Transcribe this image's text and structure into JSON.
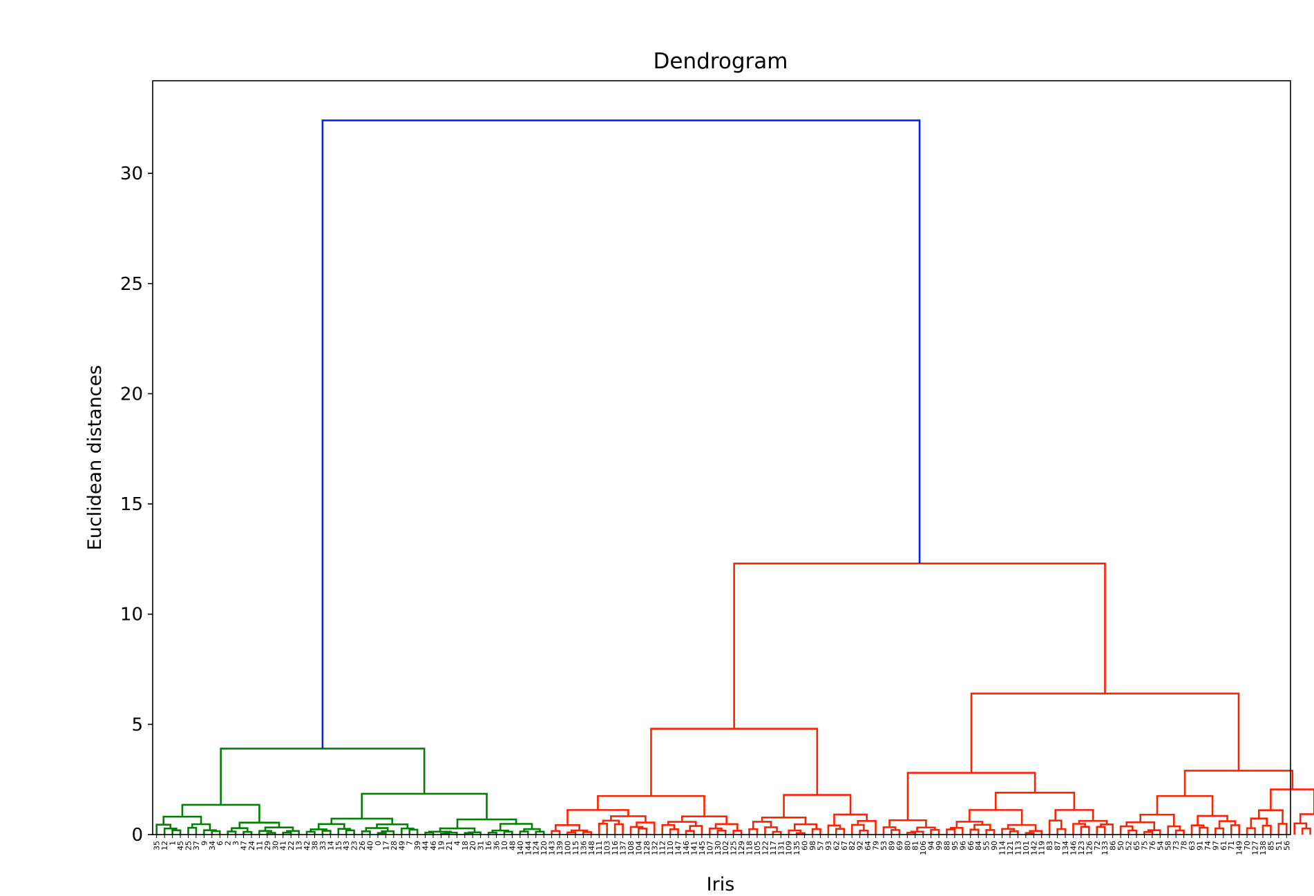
{
  "chart_data": {
    "type": "dendrogram",
    "title": "Dendrogram",
    "xlabel": "Iris",
    "ylabel": "Euclidean distances",
    "ylim": [
      0,
      34.2
    ],
    "yticks": [
      0,
      5,
      10,
      15,
      20,
      25,
      30
    ],
    "leaves": [
      "35",
      "12",
      "1",
      "45",
      "25",
      "37",
      "9",
      "34",
      "6",
      "2",
      "3",
      "47",
      "24",
      "11",
      "29",
      "30",
      "41",
      "22",
      "13",
      "42",
      "38",
      "33",
      "14",
      "15",
      "43",
      "23",
      "26",
      "40",
      "0",
      "17",
      "28",
      "49",
      "7",
      "39",
      "44",
      "46",
      "19",
      "21",
      "4",
      "18",
      "20",
      "31",
      "16",
      "36",
      "10",
      "48",
      "140",
      "144",
      "124",
      "120",
      "143",
      "139",
      "100",
      "115",
      "136",
      "148",
      "111",
      "103",
      "116",
      "137",
      "108",
      "104",
      "128",
      "132",
      "112",
      "110",
      "147",
      "146",
      "141",
      "145",
      "107",
      "130",
      "102",
      "125",
      "129",
      "118",
      "105",
      "122",
      "117",
      "131",
      "109",
      "135",
      "60",
      "98",
      "57",
      "93",
      "62",
      "67",
      "82",
      "92",
      "64",
      "79",
      "53",
      "89",
      "69",
      "80",
      "81",
      "106",
      "94",
      "99",
      "88",
      "95",
      "96",
      "66",
      "84",
      "55",
      "90",
      "114",
      "121",
      "113",
      "101",
      "142",
      "119",
      "83",
      "87",
      "134",
      "146",
      "123",
      "126",
      "72",
      "133",
      "86",
      "50",
      "52",
      "65",
      "75",
      "76",
      "54",
      "58",
      "73",
      "78",
      "63",
      "91",
      "74",
      "97",
      "61",
      "71",
      "149",
      "70",
      "127",
      "138",
      "85",
      "51",
      "56"
    ],
    "colors": {
      "cluster_1": "#008000",
      "cluster_2": "#ff2000",
      "root": "#0020ff"
    },
    "key_merges": [
      {
        "height": 32.4,
        "cluster": "root"
      },
      {
        "height": 12.3,
        "cluster": "cluster_2"
      },
      {
        "height": 6.4,
        "cluster": "cluster_2"
      },
      {
        "height": 4.8,
        "cluster": "cluster_2"
      },
      {
        "height": 3.9,
        "cluster": "cluster_1"
      },
      {
        "height": 2.9,
        "cluster": "cluster_2"
      },
      {
        "height": 2.8,
        "cluster": "cluster_2"
      }
    ]
  }
}
